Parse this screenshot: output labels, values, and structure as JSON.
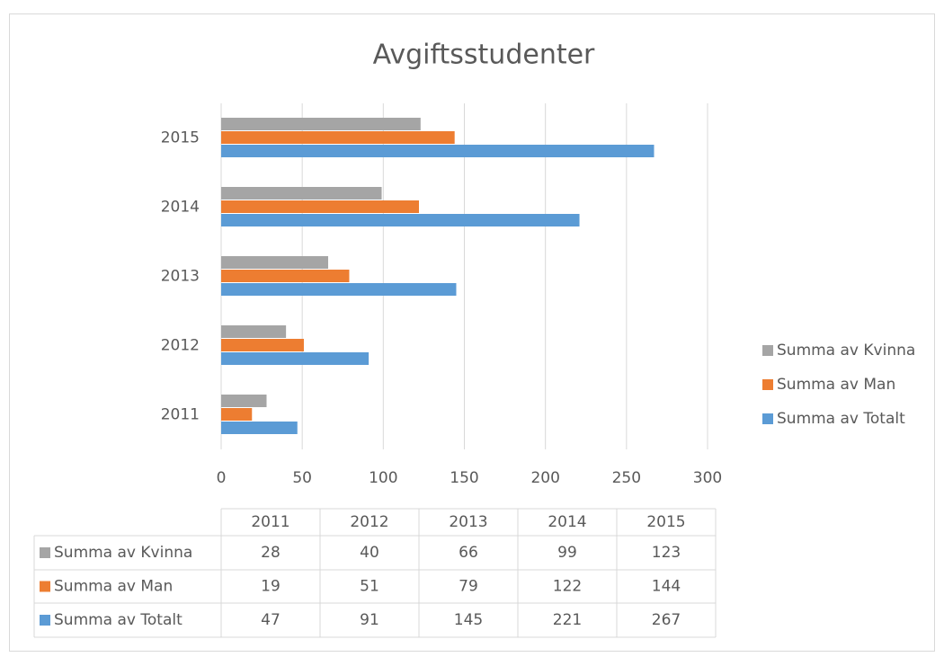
{
  "chart_data": {
    "type": "bar",
    "orientation": "horizontal",
    "title": "Avgiftsstudenter",
    "categories": [
      "2011",
      "2012",
      "2013",
      "2014",
      "2015"
    ],
    "series": [
      {
        "name": "Summa av Kvinna",
        "color": "#a5a5a5",
        "values": [
          28,
          40,
          66,
          99,
          123
        ]
      },
      {
        "name": "Summa av Man",
        "color": "#ed7d31",
        "values": [
          19,
          51,
          79,
          122,
          144
        ]
      },
      {
        "name": "Summa av Totalt",
        "color": "#5b9bd5",
        "values": [
          47,
          91,
          145,
          221,
          267
        ]
      }
    ],
    "xlim": [
      0,
      300
    ],
    "xticks": [
      0,
      50,
      100,
      150,
      200,
      250,
      300
    ],
    "grid": true,
    "legend": "right",
    "data_table": true
  }
}
